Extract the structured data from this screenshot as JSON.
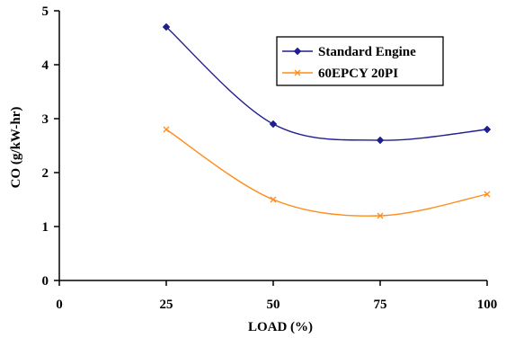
{
  "chart_data": {
    "type": "line",
    "title": "",
    "xlabel": "LOAD (%)",
    "ylabel": "CO (g/kW-hr)",
    "xlim": [
      0,
      100
    ],
    "ylim": [
      0,
      5
    ],
    "x_ticks": [
      0,
      25,
      50,
      75,
      100
    ],
    "y_ticks": [
      0,
      1,
      2,
      3,
      4,
      5
    ],
    "grid": false,
    "smooth": true,
    "legend_position": "top-right, inside plot",
    "series": [
      {
        "name": "Standard Engine",
        "color": "#1f1f8f",
        "marker": "diamond",
        "x": [
          25,
          50,
          75,
          100
        ],
        "y": [
          4.7,
          2.9,
          2.6,
          2.8
        ]
      },
      {
        "name": "60EPCY 20PI",
        "color": "#ff8c1a",
        "marker": "x",
        "x": [
          25,
          50,
          75,
          100
        ],
        "y": [
          2.8,
          1.5,
          1.2,
          1.6
        ]
      }
    ]
  }
}
